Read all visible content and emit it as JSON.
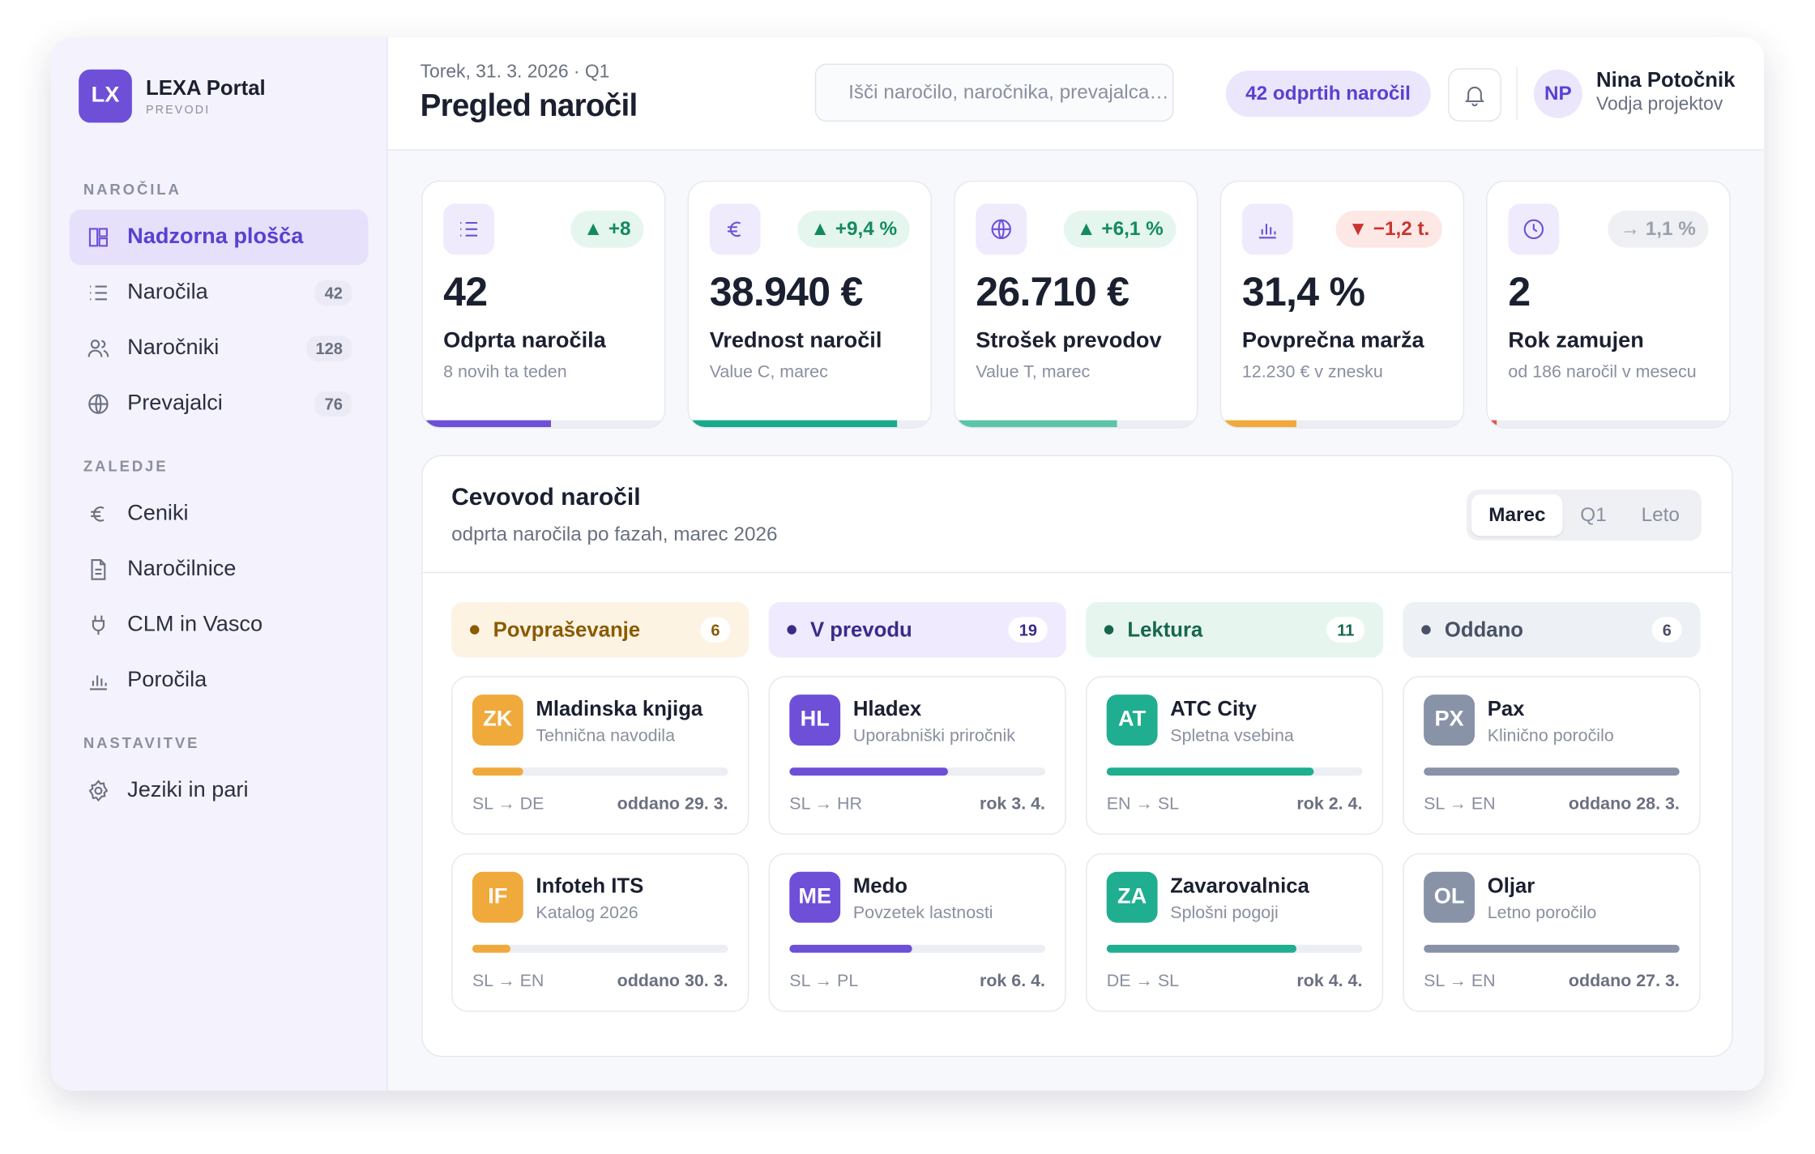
{
  "sidebar": {
    "logo": "LX",
    "brand": "LEXA Portal",
    "brand_sub": "PREVODI",
    "sections": [
      {
        "title": "NAROČILA",
        "items": [
          {
            "label": "Nadzorna plošča",
            "active": true
          },
          {
            "label": "Naročila",
            "count": 42
          },
          {
            "label": "Naročniki",
            "count": 128
          },
          {
            "label": "Prevajalci",
            "count": 76
          }
        ]
      },
      {
        "title": "ZALEDJE",
        "items": [
          {
            "label": "Ceniki"
          },
          {
            "label": "Naročilnice"
          },
          {
            "label": "CLM in Vasco"
          },
          {
            "label": "Poročila"
          }
        ]
      },
      {
        "title": "NASTAVITVE",
        "items": [
          {
            "label": "Jeziki in pari"
          }
        ]
      }
    ]
  },
  "header": {
    "date": "Torek, 31. 3. 2026 · Q1",
    "title": "Pregled naročil",
    "search_placeholder": "Išči naročilo, naročnika, prevajalca…",
    "open_badge": "42 odprtih naročil",
    "user": {
      "initials": "NP",
      "name": "Nina Potočnik",
      "role": "Vodja projektov"
    }
  },
  "kpis": [
    {
      "value": "42",
      "delta": "▲ +8",
      "trend": "up",
      "label": "Odprta naročila",
      "note": "8 novih ta teden",
      "progress": 53,
      "color": "#6d4fd8"
    },
    {
      "value": "38.940 €",
      "delta": "▲ +9,4 %",
      "trend": "up",
      "label": "Vrednost naročil",
      "note": "Value C, marec",
      "progress": 86,
      "color": "#1aa98a"
    },
    {
      "value": "26.710 €",
      "delta": "▲ +6,1 %",
      "trend": "up",
      "label": "Strošek prevodov",
      "note": "Value T, marec",
      "progress": 67,
      "color": "#5cc4a8"
    },
    {
      "value": "31,4 %",
      "delta": "▼ −1,2 t.",
      "trend": "down",
      "label": "Povprečna marža",
      "note": "12.230 € v znesku",
      "progress": 31,
      "color": "#f0a93b"
    },
    {
      "value": "2",
      "delta": "→ 1,1 %",
      "trend": "flat",
      "label": "Rok zamujen",
      "note": "od 186 naročil v mesecu",
      "progress": 4,
      "color": "#e0544f"
    }
  ],
  "pipeline": {
    "title": "Cevovod naročil",
    "subtitle": "odprta naročila po fazah, marec 2026",
    "tabs": [
      "Marec",
      "Q1",
      "Leto"
    ],
    "active_tab": 0,
    "columns": [
      {
        "name": "Povpraševanje",
        "count": 6,
        "tone": "amber",
        "cards": [
          {
            "initials": "ZK",
            "client": "Mladinska knjiga",
            "type": "Tehnična navodila",
            "progress": 20,
            "pair": "SL → DE",
            "due": "oddano 29. 3."
          },
          {
            "initials": "IF",
            "client": "Infoteh ITS",
            "type": "Katalog 2026",
            "progress": 15,
            "pair": "SL → EN",
            "due": "oddano 30. 3."
          }
        ]
      },
      {
        "name": "V prevodu",
        "count": 19,
        "tone": "purple",
        "cards": [
          {
            "initials": "HL",
            "client": "Hladex",
            "type": "Uporabniški priročnik",
            "progress": 62,
            "pair": "SL → HR",
            "due": "rok 3. 4."
          },
          {
            "initials": "ME",
            "client": "Medo",
            "type": "Povzetek lastnosti",
            "progress": 48,
            "pair": "SL → PL",
            "due": "rok 6. 4."
          }
        ]
      },
      {
        "name": "Lektura",
        "count": 11,
        "tone": "green",
        "cards": [
          {
            "initials": "AT",
            "client": "ATC City",
            "type": "Spletna vsebina",
            "progress": 81,
            "pair": "EN → SL",
            "due": "rok 2. 4."
          },
          {
            "initials": "ZA",
            "client": "Zavarovalnica",
            "type": "Splošni pogoji",
            "progress": 74,
            "pair": "DE → SL",
            "due": "rok 4. 4."
          }
        ]
      },
      {
        "name": "Oddano",
        "count": 6,
        "tone": "gray",
        "cards": [
          {
            "initials": "PX",
            "client": "Pax",
            "type": "Klinično poročilo",
            "progress": 100,
            "pair": "SL → EN",
            "due": "oddano 28. 3."
          },
          {
            "initials": "OL",
            "client": "Oljar",
            "type": "Letno poročilo",
            "progress": 100,
            "pair": "SL → EN",
            "due": "oddano 27. 3."
          }
        ]
      }
    ]
  }
}
